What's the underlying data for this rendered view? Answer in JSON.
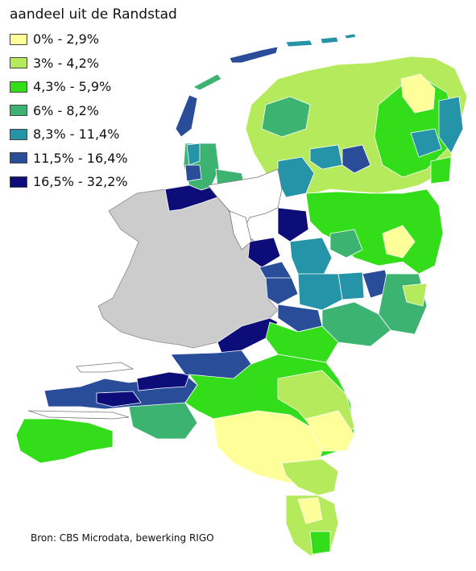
{
  "legend": {
    "title": "aandeel uit de Randstad",
    "items": [
      {
        "label": "0% - 2,9%",
        "color": "#ffff99"
      },
      {
        "label": "3% - 4,2%",
        "color": "#b5ea5c"
      },
      {
        "label": "4,3% - 5,9%",
        "color": "#33dd1a"
      },
      {
        "label": "6% - 8,2%",
        "color": "#3cb371"
      },
      {
        "label": "8,3% - 11,4%",
        "color": "#2594a8"
      },
      {
        "label": "11,5% - 16,4%",
        "color": "#2a4d9a"
      },
      {
        "label": "16,5% - 32,2%",
        "color": "#0d0d7a"
      }
    ]
  },
  "randstad_color": "#cccccc",
  "water_color": "#ffffff",
  "source": "Bron: CBS Microdata, bewerking RIGO"
}
